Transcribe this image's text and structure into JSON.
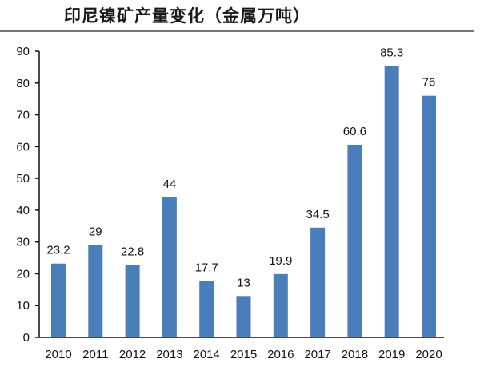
{
  "title": "印尼镍矿产量变化（金属万吨）",
  "colors": {
    "bar": "#4a7ebb",
    "axis": "#111111",
    "rule": "#777777"
  },
  "chart_data": {
    "type": "bar",
    "title": "印尼镍矿产量变化（金属万吨）",
    "xlabel": "",
    "ylabel": "",
    "categories": [
      "2010",
      "2011",
      "2012",
      "2013",
      "2014",
      "2015",
      "2016",
      "2017",
      "2018",
      "2019",
      "2020"
    ],
    "values": [
      23.2,
      29,
      22.8,
      44,
      17.7,
      13,
      19.9,
      34.5,
      60.6,
      85.3,
      76
    ],
    "data_labels": [
      "23.2",
      "29",
      "22.8",
      "44",
      "17.7",
      "13",
      "19.9",
      "34.5",
      "60.6",
      "85.3",
      "76"
    ],
    "ylim": [
      0,
      90
    ],
    "yticks": [
      0,
      10,
      20,
      30,
      40,
      50,
      60,
      70,
      80,
      90
    ],
    "grid": false,
    "legend": null
  }
}
